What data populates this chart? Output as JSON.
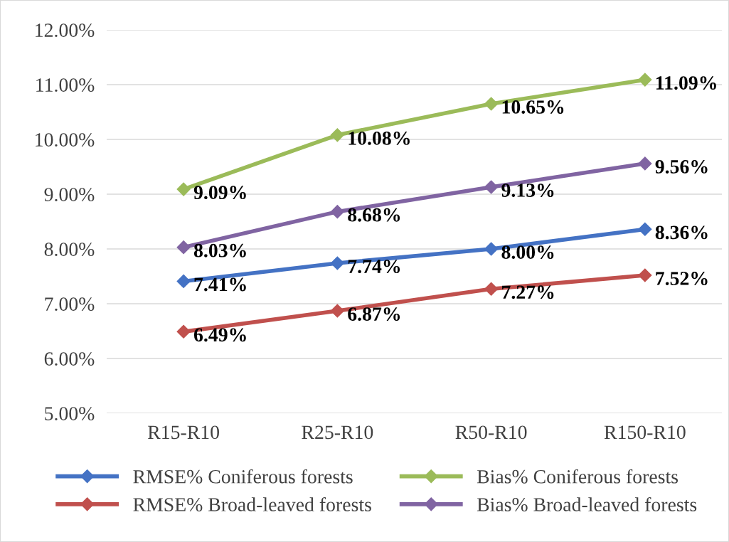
{
  "chart_data": {
    "type": "line",
    "categories": [
      "R15-R10",
      "R25-R10",
      "R50-R10",
      "R150-R10"
    ],
    "series": [
      {
        "name": "RMSE% Coniferous forests",
        "color": "#4472c4",
        "values": [
          7.41,
          7.74,
          8.0,
          8.36
        ],
        "value_labels": [
          "7.41%",
          "7.74%",
          "8.00%",
          "8.36%"
        ]
      },
      {
        "name": "RMSE% Broad-leaved forests",
        "color": "#c0504d",
        "values": [
          6.49,
          6.87,
          7.27,
          7.52
        ],
        "value_labels": [
          "6.49%",
          "6.87%",
          "7.27%",
          "7.52%"
        ]
      },
      {
        "name": "Bias% Coniferous forests",
        "color": "#9bbb59",
        "values": [
          9.09,
          10.08,
          10.65,
          11.09
        ],
        "value_labels": [
          "9.09%",
          "10.08%",
          "10.65%",
          "11.09%"
        ]
      },
      {
        "name": "Bias% Broad-leaved forests",
        "color": "#8064a2",
        "values": [
          8.03,
          8.68,
          9.13,
          9.56
        ],
        "value_labels": [
          "8.03%",
          "8.68%",
          "9.13%",
          "9.56%"
        ]
      }
    ],
    "ylim": [
      5,
      12
    ],
    "yticks": [
      {
        "value": 5,
        "label": "5.00%"
      },
      {
        "value": 6,
        "label": "6.00%"
      },
      {
        "value": 7,
        "label": "7.00%"
      },
      {
        "value": 8,
        "label": "8.00%"
      },
      {
        "value": 9,
        "label": "9.00%"
      },
      {
        "value": 10,
        "label": "10.00%"
      },
      {
        "value": 11,
        "label": "11.00%"
      },
      {
        "value": 12,
        "label": "12.00%"
      }
    ],
    "grid": "y",
    "legend": "bottom",
    "marker": "diamond",
    "line_style": "solid"
  }
}
